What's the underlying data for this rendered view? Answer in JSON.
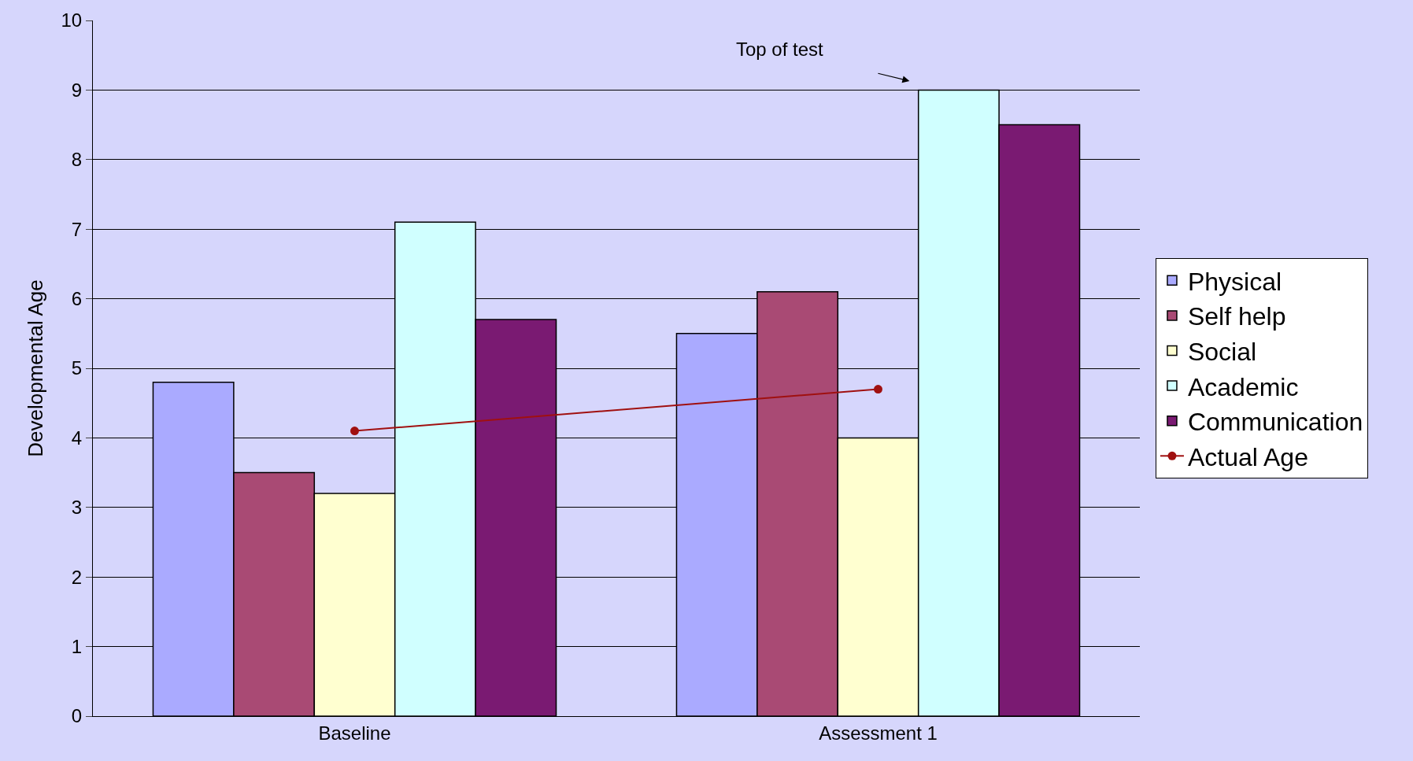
{
  "chart_data": {
    "type": "bar",
    "ylabel": "Developmental Age",
    "categories": [
      "Baseline",
      "Assessment 1"
    ],
    "series": [
      {
        "name": "Physical",
        "color": "#aaaaff",
        "values": [
          4.8,
          5.5
        ]
      },
      {
        "name": "Self help",
        "color": "#a94a74",
        "values": [
          3.5,
          6.1
        ]
      },
      {
        "name": "Social",
        "color": "#ffffd0",
        "values": [
          3.2,
          4.0
        ]
      },
      {
        "name": "Academic",
        "color": "#d0ffff",
        "values": [
          7.1,
          9.0
        ]
      },
      {
        "name": "Communication",
        "color": "#7a1a72",
        "values": [
          5.7,
          8.5
        ]
      },
      {
        "name": "Actual Age",
        "color": "#a01010",
        "type": "line",
        "marker": "circle",
        "values": [
          4.1,
          4.7
        ]
      }
    ],
    "annotations": [
      "Top of test"
    ],
    "ylim": [
      0,
      10
    ],
    "yticks": [
      0,
      1,
      2,
      3,
      4,
      5,
      6,
      7,
      8,
      9,
      10
    ],
    "grid": "y",
    "legend": "right"
  }
}
